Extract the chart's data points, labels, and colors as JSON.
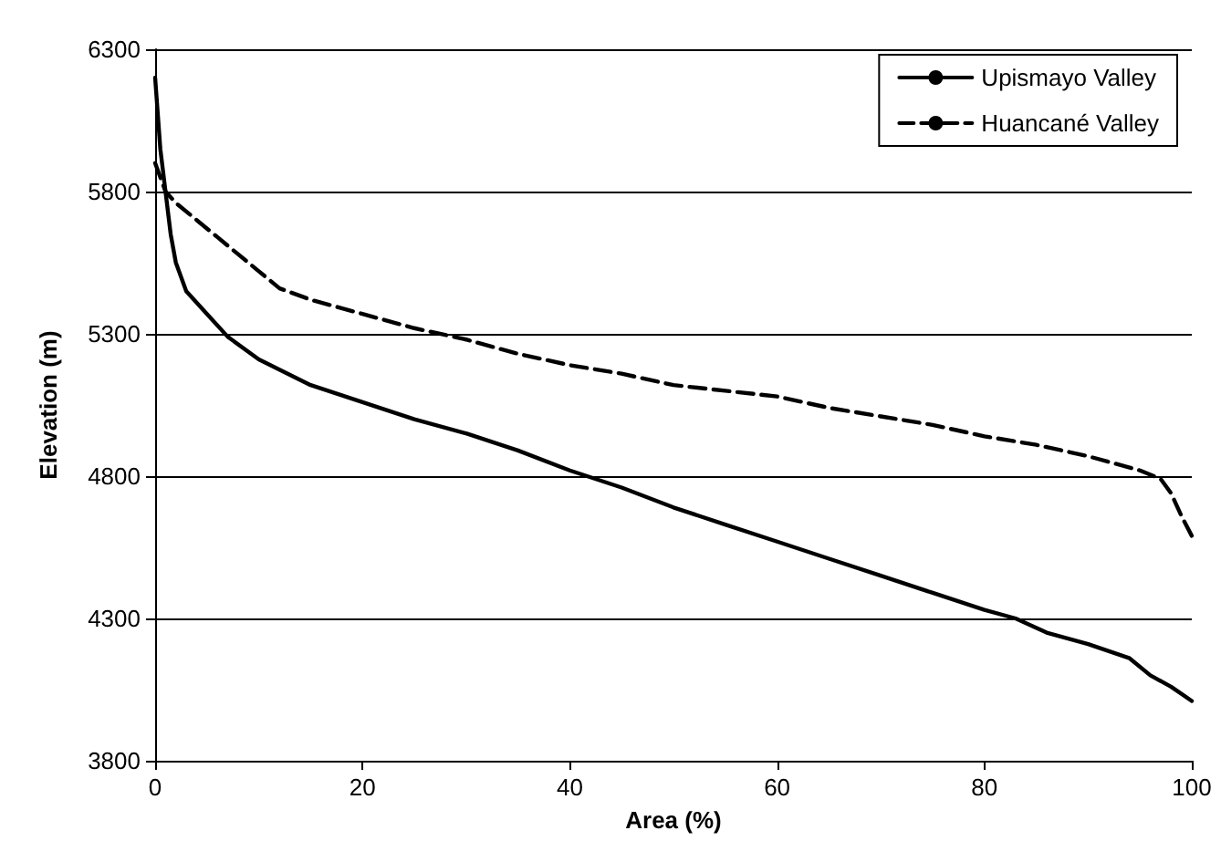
{
  "chart_data": {
    "type": "line",
    "xlabel": "Area (%)",
    "ylabel": "Elevation (m)",
    "xlim": [
      0,
      100
    ],
    "xticks": [
      0,
      20,
      40,
      60,
      80,
      100
    ],
    "ylim": [
      3800,
      6300
    ],
    "yticks": [
      3800,
      4300,
      4800,
      5300,
      5800,
      6300
    ],
    "grid": "y",
    "legend": "top right",
    "marker": "none",
    "series": [
      {
        "name": "Upismayo Valley",
        "color": "#000000",
        "line_style": "solid",
        "x": [
          0,
          0.5,
          1,
          1.5,
          2,
          3,
          5,
          7,
          10,
          15,
          20,
          25,
          30,
          35,
          40,
          45,
          50,
          55,
          60,
          65,
          70,
          75,
          80,
          83,
          86,
          90,
          94,
          96,
          98,
          100
        ],
        "values": [
          6200,
          5950,
          5800,
          5650,
          5550,
          5450,
          5370,
          5290,
          5210,
          5120,
          5060,
          5000,
          4950,
          4890,
          4820,
          4760,
          4690,
          4630,
          4570,
          4510,
          4450,
          4390,
          4330,
          4300,
          4250,
          4210,
          4160,
          4100,
          4060,
          4010
        ]
      },
      {
        "name": "Huancané Valley",
        "color": "#000000",
        "line_style": "dashed",
        "x": [
          0,
          1,
          2,
          4,
          6,
          8,
          10,
          12,
          15,
          20,
          25,
          30,
          35,
          40,
          45,
          50,
          55,
          60,
          65,
          70,
          75,
          80,
          85,
          90,
          95,
          97,
          98,
          99,
          100
        ],
        "values": [
          5900,
          5800,
          5760,
          5700,
          5640,
          5580,
          5520,
          5460,
          5420,
          5370,
          5320,
          5280,
          5230,
          5190,
          5160,
          5120,
          5100,
          5080,
          5040,
          5010,
          4980,
          4940,
          4910,
          4870,
          4820,
          4790,
          4740,
          4660,
          4590
        ]
      }
    ]
  }
}
